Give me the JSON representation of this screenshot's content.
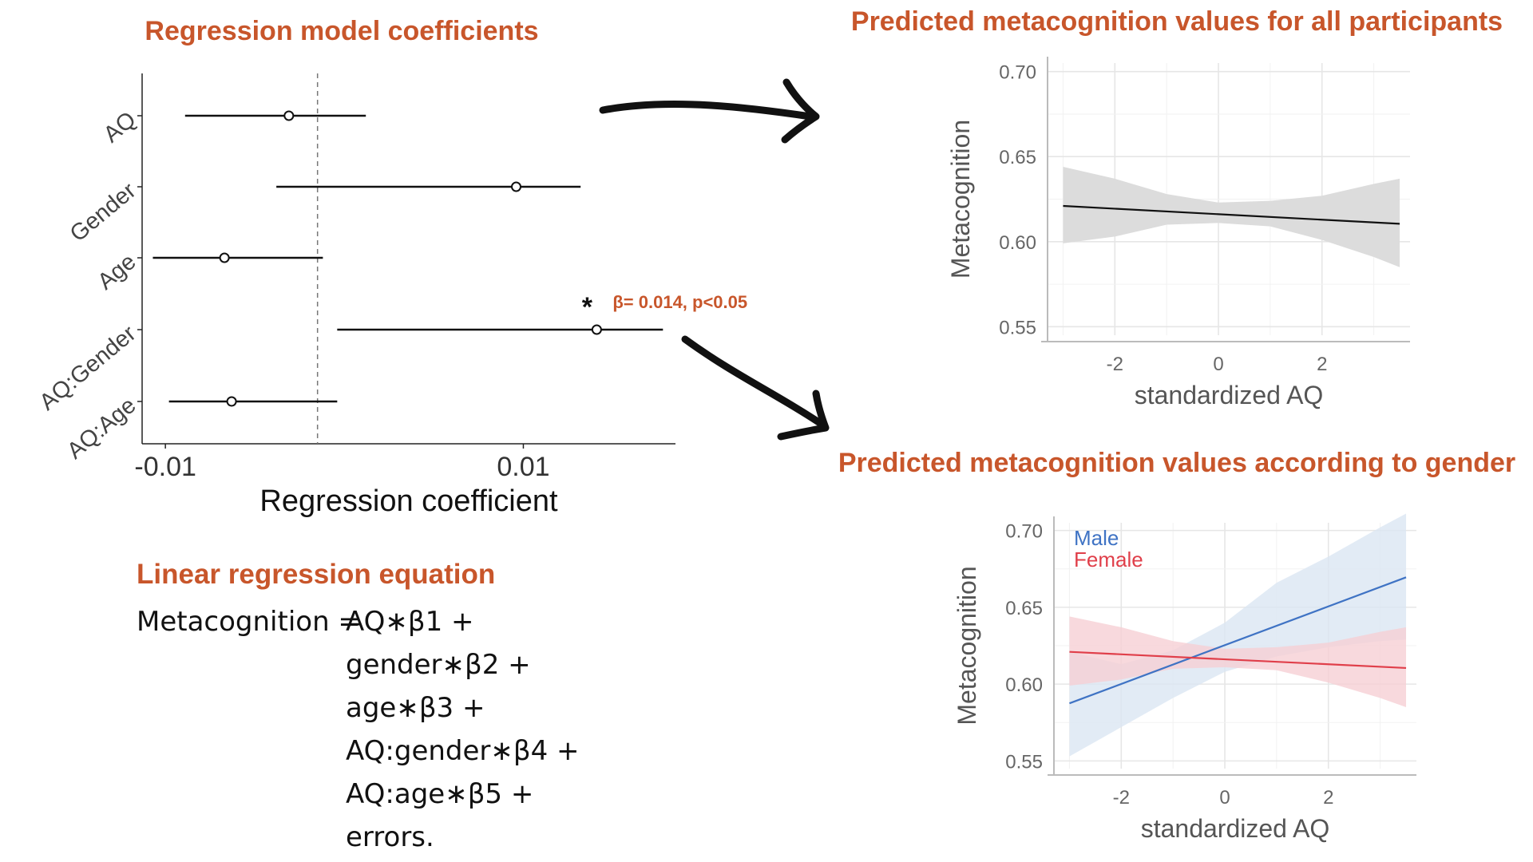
{
  "colors": {
    "accent": "#c8562b",
    "male": "#3f73c4",
    "female": "#e03f4a",
    "male_band": "#dbe6f3",
    "female_band": "#f6d0d5",
    "all_band": "#dcdcdc"
  },
  "equation": {
    "title": "Linear regression equation",
    "lhs": "Metacognition =",
    "terms": [
      "AQ∗β1 +",
      "gender∗β2 +",
      "age∗β3 +",
      "AQ:gender∗β4 +",
      "AQ:age∗β5 +",
      "errors."
    ]
  },
  "chart_data": [
    {
      "type": "scatter",
      "title": "Regression model coefficients",
      "xlabel": "Regression coefficient",
      "ylabel": "",
      "xlim": [
        -0.0113,
        0.0185
      ],
      "xticks": [
        -0.01,
        0.01
      ],
      "xtick_labels": [
        "-0.01",
        "0.01"
      ],
      "reference_line": {
        "x": -0.0015,
        "style": "dashed"
      },
      "categories": [
        "AQ",
        "Gender",
        "Age",
        "AQ:Gender",
        "AQ:Age"
      ],
      "estimates": [
        -0.0031,
        0.0096,
        -0.0067,
        0.0141,
        -0.0063
      ],
      "ci_lower": [
        -0.0089,
        -0.0038,
        -0.0107,
        -0.0004,
        -0.0098
      ],
      "ci_upper": [
        0.0012,
        0.0132,
        -0.0012,
        0.0178,
        -0.0004
      ],
      "annotation": {
        "category": "AQ:Gender",
        "marker": "*",
        "text": "β= 0.014, p<0.05"
      },
      "grid": false
    },
    {
      "type": "line",
      "title": "Predicted metacognition values for all participants",
      "xlabel": "standardized AQ",
      "ylabel": "Metacognition",
      "xlim": [
        -3.3,
        3.7
      ],
      "ylim": [
        0.545,
        0.705
      ],
      "xticks": [
        -2,
        0,
        2
      ],
      "xtick_labels": [
        "-2",
        "0",
        "2"
      ],
      "yticks": [
        0.55,
        0.6,
        0.65,
        0.7
      ],
      "ytick_labels": [
        "0.55",
        "0.60",
        "0.65",
        "0.70"
      ],
      "grid": true,
      "series": [
        {
          "x": [
            -3.0,
            3.5
          ],
          "y": [
            0.621,
            0.6105
          ],
          "ci_x": [
            -3.0,
            -2.0,
            -1.0,
            0.0,
            1.0,
            2.0,
            3.0,
            3.5
          ],
          "ci_lower": [
            0.599,
            0.603,
            0.61,
            0.611,
            0.609,
            0.601,
            0.591,
            0.585
          ],
          "ci_upper": [
            0.644,
            0.637,
            0.628,
            0.623,
            0.624,
            0.627,
            0.634,
            0.637
          ]
        }
      ]
    },
    {
      "type": "line",
      "title": "Predicted metacognition values according to gender",
      "xlabel": "standardized AQ",
      "ylabel": "Metacognition",
      "xlim": [
        -3.3,
        3.7
      ],
      "ylim": [
        0.545,
        0.705
      ],
      "xticks": [
        -2,
        0,
        2
      ],
      "xtick_labels": [
        "-2",
        "0",
        "2"
      ],
      "yticks": [
        0.55,
        0.6,
        0.65,
        0.7
      ],
      "ytick_labels": [
        "0.55",
        "0.60",
        "0.65",
        "0.70"
      ],
      "grid": true,
      "legend_position": "top-left",
      "series": [
        {
          "name": "Male",
          "x": [
            -3.0,
            3.5
          ],
          "y": [
            0.5875,
            0.6695
          ],
          "ci_x": [
            -3.0,
            -2.0,
            -1.0,
            0.0,
            1.0,
            2.0,
            3.0,
            3.5
          ],
          "ci_lower": [
            0.553,
            0.572,
            0.591,
            0.608,
            0.618,
            0.624,
            0.628,
            0.629
          ],
          "ci_upper": [
            0.621,
            0.613,
            0.622,
            0.64,
            0.666,
            0.683,
            0.702,
            0.711
          ]
        },
        {
          "name": "Female",
          "x": [
            -3.0,
            3.5
          ],
          "y": [
            0.621,
            0.6105
          ],
          "ci_x": [
            -3.0,
            -2.0,
            -1.0,
            0.0,
            1.0,
            2.0,
            3.0,
            3.5
          ],
          "ci_lower": [
            0.599,
            0.603,
            0.61,
            0.611,
            0.609,
            0.601,
            0.591,
            0.585
          ],
          "ci_upper": [
            0.644,
            0.637,
            0.628,
            0.623,
            0.624,
            0.627,
            0.634,
            0.637
          ]
        }
      ]
    }
  ]
}
